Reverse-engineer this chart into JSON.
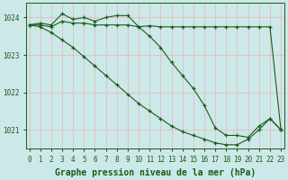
{
  "xlabel": "Graphe pression niveau de la mer (hPa)",
  "bg_color": "#cce8e8",
  "grid_color": "#e8b4b4",
  "line_color": "#1a5c1a",
  "line1": [
    1023.8,
    1023.85,
    1023.8,
    1024.1,
    1023.95,
    1024.0,
    1023.9,
    1024.0,
    1024.05,
    1024.05,
    1023.75,
    1023.5,
    1023.2,
    1022.8,
    1022.45,
    1022.1,
    1021.65,
    1021.05,
    1020.85,
    1020.85,
    1020.8,
    1021.1,
    1021.3,
    1021.0
  ],
  "line2": [
    1023.8,
    1023.8,
    1023.75,
    1023.9,
    1023.85,
    1023.85,
    1023.8,
    1023.8,
    1023.8,
    1023.8,
    1023.75,
    1023.78,
    1023.75,
    1023.75,
    1023.75,
    1023.75,
    1023.75,
    1023.75,
    1023.75,
    1023.75,
    1023.75,
    1023.75,
    1023.75,
    1021.0
  ],
  "line3": [
    1023.8,
    1023.75,
    1023.6,
    1023.4,
    1023.2,
    1022.95,
    1022.7,
    1022.45,
    1022.2,
    1021.95,
    1021.7,
    1021.5,
    1021.3,
    1021.1,
    1020.95,
    1020.85,
    1020.75,
    1020.65,
    1020.6,
    1020.6,
    1020.75,
    1021.0,
    1021.3,
    1021.0
  ],
  "hours": [
    0,
    1,
    2,
    3,
    4,
    5,
    6,
    7,
    8,
    9,
    10,
    11,
    12,
    13,
    14,
    15,
    16,
    17,
    18,
    19,
    20,
    21,
    22,
    23
  ],
  "ylim": [
    1020.5,
    1024.4
  ],
  "yticks": [
    1021,
    1022,
    1023,
    1024
  ],
  "xtick_labels": [
    "0",
    "1",
    "2",
    "3",
    "4",
    "5",
    "6",
    "7",
    "8",
    "9",
    "10",
    "11",
    "12",
    "13",
    "14",
    "15",
    "16",
    "17",
    "18",
    "19",
    "20",
    "21",
    "22",
    "23"
  ],
  "tick_fontsize": 5.5,
  "label_fontsize": 7
}
